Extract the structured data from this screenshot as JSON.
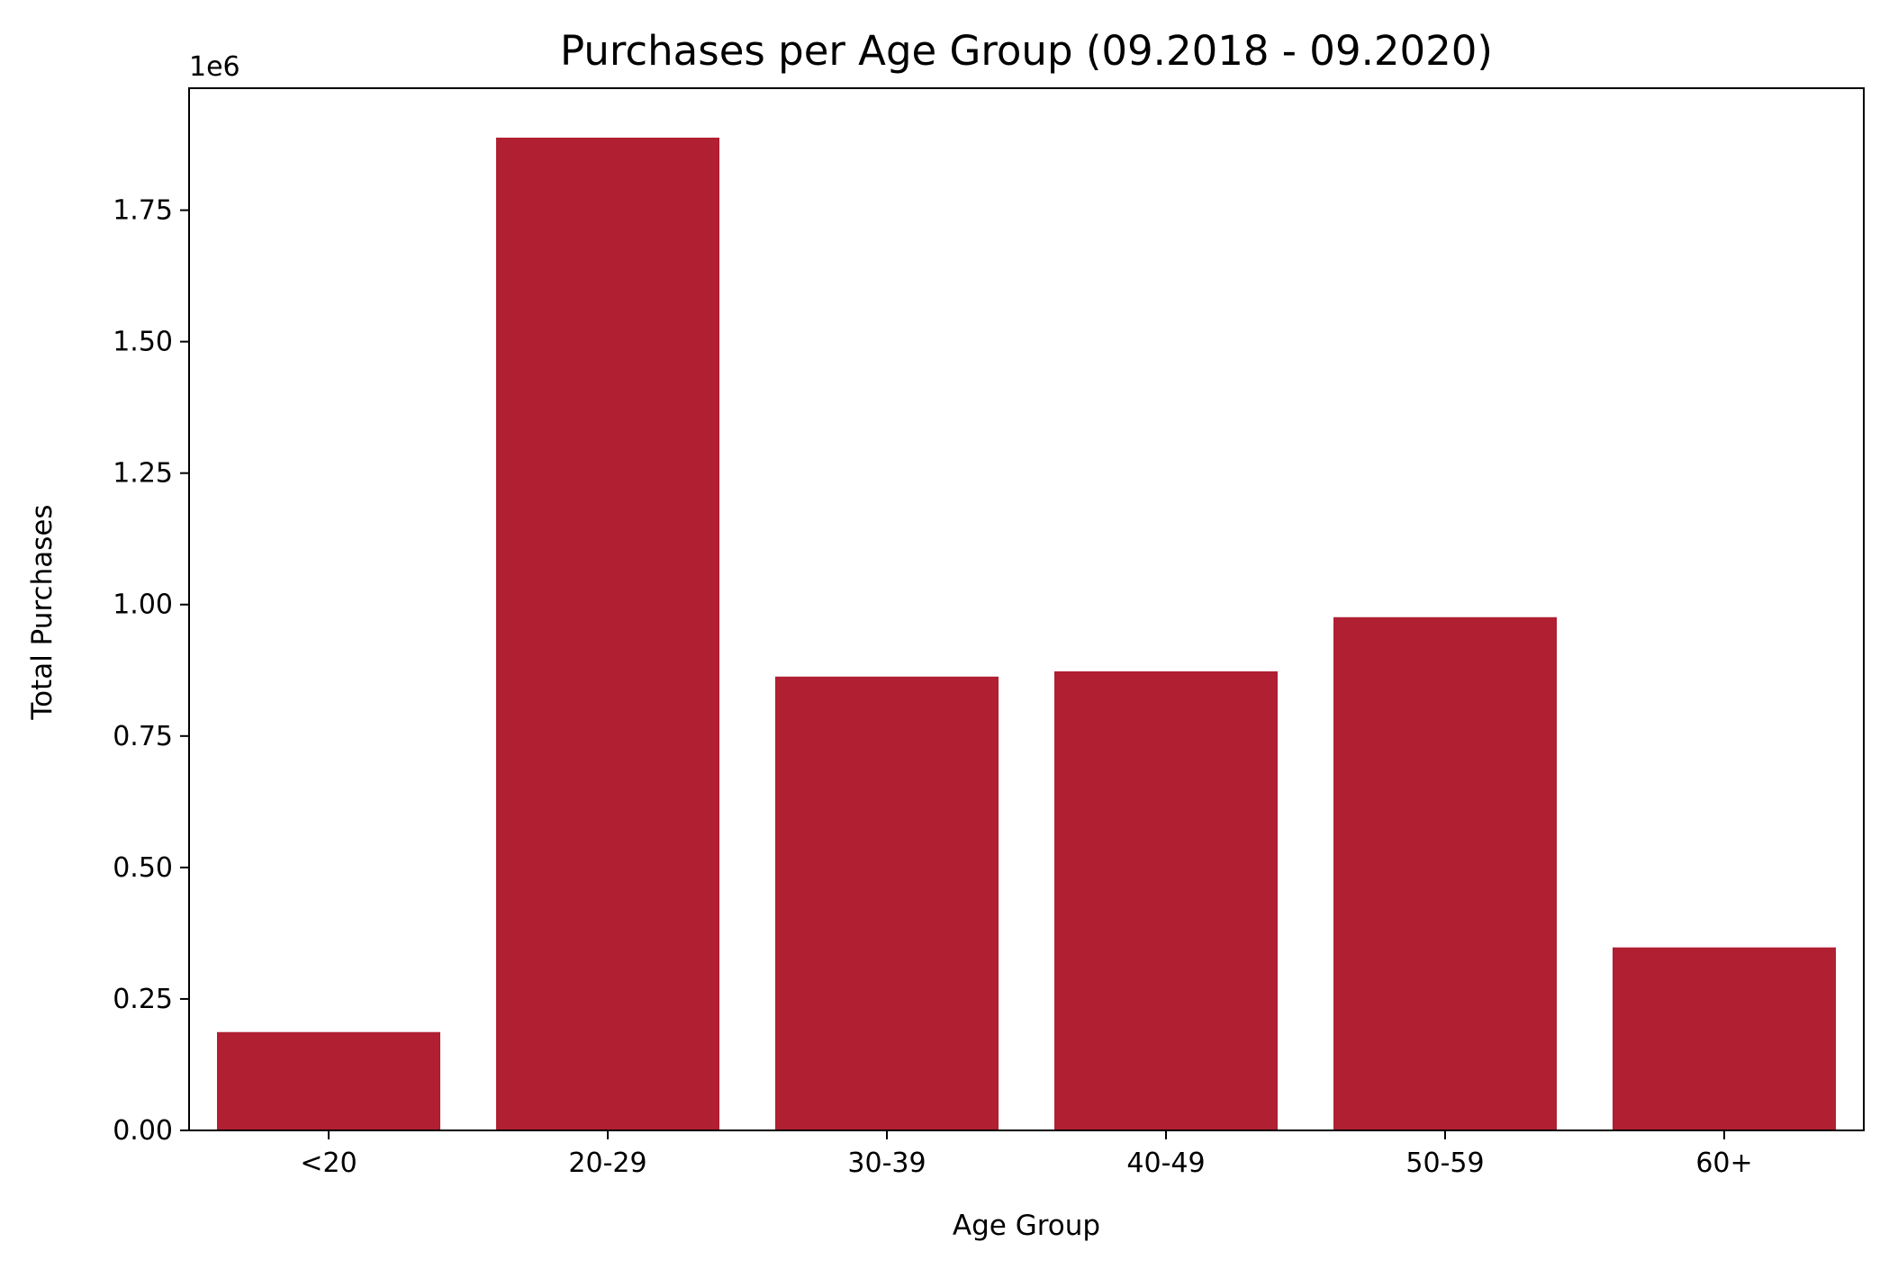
{
  "chart_data": {
    "type": "bar",
    "title": "Purchases per Age Group (09.2018 - 09.2020)",
    "xlabel": "Age Group",
    "ylabel": "Total Purchases",
    "offset_label": "1e6",
    "categories": [
      "<20",
      "20-29",
      "30-39",
      "40-49",
      "50-59",
      "60+"
    ],
    "values": [
      187000,
      1888000,
      863000,
      873000,
      976000,
      348000
    ],
    "y_ticks": [
      0,
      250000,
      500000,
      750000,
      1000000,
      1250000,
      1500000,
      1750000
    ],
    "y_tick_labels": [
      "0.00",
      "0.25",
      "0.50",
      "0.75",
      "1.00",
      "1.25",
      "1.50",
      "1.75"
    ],
    "ylim": [
      0,
      1982000
    ],
    "bar_color": "#B01F32",
    "grid": false,
    "legend": "none"
  }
}
